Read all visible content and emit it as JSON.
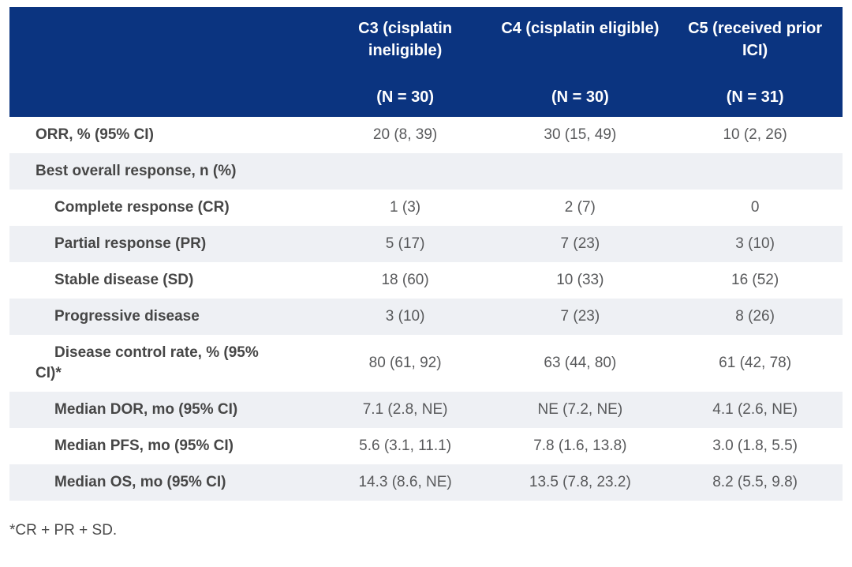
{
  "colors": {
    "header_bg": "#0b3480",
    "header_text": "#ffffff",
    "stripe": "#eef0f4",
    "label_text": "#464646",
    "value_text": "#58595b"
  },
  "chart_data": {
    "type": "table",
    "title": "",
    "columns": [
      {
        "title": "C3 (cisplatin ineligible)",
        "n_label": "(N = 30)"
      },
      {
        "title": "C4 (cisplatin eligible)",
        "n_label": "(N = 30)"
      },
      {
        "title": "C5 (received prior ICI)",
        "n_label": "(N = 31)"
      }
    ],
    "rows": [
      {
        "label": "ORR, % (95% CI)",
        "values": [
          "20 (8, 39)",
          "30 (15, 49)",
          "10 (2, 26)"
        ]
      },
      {
        "label": "Best overall response, n (%)",
        "values": [
          "",
          "",
          ""
        ]
      },
      {
        "label": "Complete response (CR)",
        "values": [
          "1 (3)",
          "2 (7)",
          "0"
        ]
      },
      {
        "label": "Partial response (PR)",
        "values": [
          "5 (17)",
          "7 (23)",
          "3 (10)"
        ]
      },
      {
        "label": "Stable disease (SD)",
        "values": [
          "18 (60)",
          "10 (33)",
          "16 (52)"
        ]
      },
      {
        "label": "Progressive disease",
        "values": [
          "3 (10)",
          "7 (23)",
          "8 (26)"
        ]
      },
      {
        "label": "Disease control rate, % (95%\nCI)*",
        "values": [
          "80 (61, 92)",
          "63 (44, 80)",
          "61 (42, 78)"
        ]
      },
      {
        "label": "Median DOR, mo (95% CI)",
        "values": [
          "7.1 (2.8, NE)",
          "NE (7.2, NE)",
          "4.1 (2.6, NE)"
        ]
      },
      {
        "label": "Median PFS, mo (95% CI)",
        "values": [
          "5.6 (3.1, 11.1)",
          "7.8 (1.6, 13.8)",
          "3.0 (1.8, 5.5)"
        ]
      },
      {
        "label": "Median OS, mo (95% CI)",
        "values": [
          "14.3 (8.6, NE)",
          "13.5 (7.8, 23.2)",
          "8.2 (5.5, 9.8)"
        ]
      }
    ],
    "footnote": "*CR + PR + SD."
  }
}
